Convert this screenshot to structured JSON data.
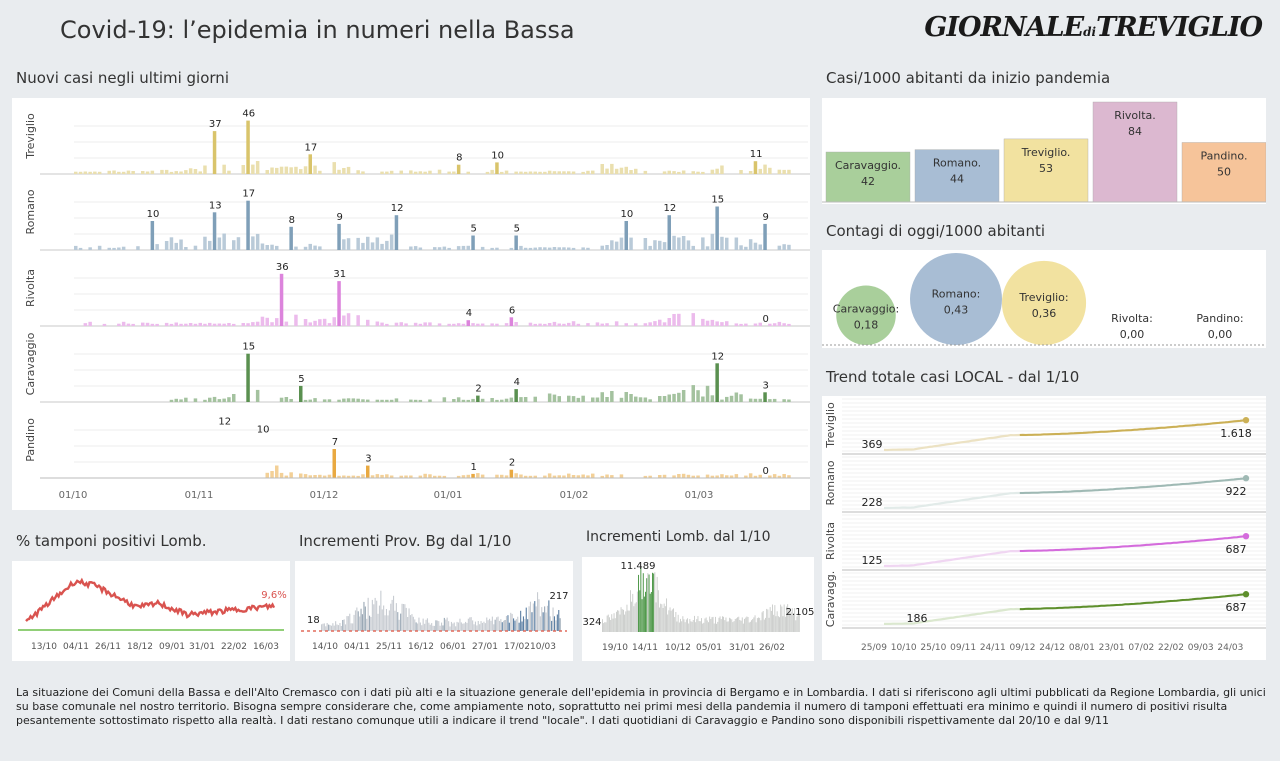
{
  "header": {
    "title": "Covid-19: l’epidemia  in numeri nella Bassa",
    "logo_main": "GIORNALE",
    "logo_small": "di",
    "logo_end": "TREVIGLIO"
  },
  "daily": {
    "title": "Nuovi casi negli ultimi   giorni",
    "x_ticks": [
      "01/10",
      "01/11",
      "01/12",
      "01/01",
      "01/02",
      "01/03"
    ],
    "colors": [
      "#d9c46b",
      "#7f9fb8",
      "#dc84dc",
      "#5a9050",
      "#e9a941"
    ],
    "series": [
      {
        "name": "Treviglio",
        "max": 50,
        "labels": [
          {
            "i": 29,
            "v": 37
          },
          {
            "i": 36,
            "v": 46
          },
          {
            "i": 49,
            "v": 17
          },
          {
            "i": 80,
            "v": 8
          },
          {
            "i": 88,
            "v": 10
          },
          {
            "i": 142,
            "v": 11
          }
        ]
      },
      {
        "name": "Romano",
        "max": 20,
        "labels": [
          {
            "i": 16,
            "v": 10
          },
          {
            "i": 29,
            "v": 13
          },
          {
            "i": 36,
            "v": 17
          },
          {
            "i": 45,
            "v": 8
          },
          {
            "i": 55,
            "v": 9
          },
          {
            "i": 67,
            "v": 12
          },
          {
            "i": 83,
            "v": 5
          },
          {
            "i": 92,
            "v": 5
          },
          {
            "i": 115,
            "v": 10
          },
          {
            "i": 124,
            "v": 12
          },
          {
            "i": 134,
            "v": 15
          },
          {
            "i": 144,
            "v": 9
          }
        ]
      },
      {
        "name": "Rivolta",
        "max": 40,
        "labels": [
          {
            "i": 43,
            "v": 36
          },
          {
            "i": 55,
            "v": 31
          },
          {
            "i": 82,
            "v": 4
          },
          {
            "i": 91,
            "v": 6
          },
          {
            "i": 144,
            "v": 0
          }
        ]
      },
      {
        "name": "Caravaggio",
        "max": 18,
        "labels": [
          {
            "i": 36,
            "v": 15
          },
          {
            "i": 47,
            "v": 5
          },
          {
            "i": 84,
            "v": 2
          },
          {
            "i": 92,
            "v": 4
          },
          {
            "i": 134,
            "v": 12
          },
          {
            "i": 144,
            "v": 3
          }
        ]
      },
      {
        "name": "Pandino",
        "max": 14,
        "labels": [
          {
            "i": 31,
            "v": 12
          },
          {
            "i": 39,
            "v": 10
          },
          {
            "i": 54,
            "v": 7
          },
          {
            "i": 61,
            "v": 3
          },
          {
            "i": 83,
            "v": 1
          },
          {
            "i": 91,
            "v": 2
          },
          {
            "i": 144,
            "v": 0
          }
        ]
      }
    ]
  },
  "per1000": {
    "title": "Casi/1000 abitanti da inizio pandemia",
    "bars": [
      {
        "name": "Caravaggio.",
        "value": 42,
        "color": "#a9cf9b"
      },
      {
        "name": "Romano.",
        "value": 44,
        "color": "#a8bdd4"
      },
      {
        "name": "Treviglio.",
        "value": 53,
        "color": "#f2e2a0"
      },
      {
        "name": "Rivolta.",
        "value": 84,
        "color": "#dcb8d0"
      },
      {
        "name": "Pandino.",
        "value": 50,
        "color": "#f6c49a"
      }
    ]
  },
  "today": {
    "title": "Contagi di oggi/1000 abitanti",
    "items": [
      {
        "name": "Caravaggio:",
        "value": "0,18",
        "num": 0.18,
        "color": "#a9cf9b"
      },
      {
        "name": "Romano:",
        "value": "0,43",
        "num": 0.43,
        "color": "#a8bdd4"
      },
      {
        "name": "Treviglio:",
        "value": "0,36",
        "num": 0.36,
        "color": "#f2e2a0"
      },
      {
        "name": "Rivolta:",
        "value": "0,00",
        "num": 0,
        "color": "#dcb8d0"
      },
      {
        "name": "Pandino:",
        "value": "0,00",
        "num": 0,
        "color": "#f6c49a"
      }
    ]
  },
  "trend": {
    "title": "Trend totale casi  LOCAL - dal 1/10",
    "x_ticks": [
      "25/09",
      "10/10",
      "25/10",
      "09/11",
      "24/11",
      "09/12",
      "24/12",
      "08/01",
      "23/01",
      "07/02",
      "22/02",
      "09/03",
      "24/03"
    ],
    "series": [
      {
        "name": "Treviglio",
        "start": 369,
        "end": 1618,
        "start_label": "369",
        "end_label": "1.618",
        "color": "#cbb056",
        "faint": "#ece2c3"
      },
      {
        "name": "Romano",
        "start": 228,
        "end": 922,
        "start_label": "228",
        "end_label": "922",
        "color": "#9fb9b4",
        "faint": "#e2ebe9"
      },
      {
        "name": "Rivolta",
        "start": 125,
        "end": 687,
        "start_label": "125",
        "end_label": "687",
        "color": "#d46bdc",
        "faint": "#f0d6f2"
      },
      {
        "name": "Caravagg.",
        "start": 186,
        "end": 687,
        "start_label": "186",
        "end_label": "687",
        "color": "#5e8f2c",
        "faint": "#dbe8cf"
      }
    ]
  },
  "positivi": {
    "title": "% tamponi positivi Lomb.",
    "x_ticks": [
      "13/10",
      "04/11",
      "26/11",
      "18/12",
      "09/01",
      "31/01",
      "22/02",
      "16/03"
    ],
    "last_label": "9,6%",
    "color": "#d9534f"
  },
  "prov_bg": {
    "title": "Incrementi Prov. Bg dal 1/10",
    "x_ticks": [
      "14/10",
      "04/11",
      "25/11",
      "16/12",
      "06/01",
      "27/01",
      "17/02",
      "10/03"
    ],
    "first_label": "18",
    "last_label": "217"
  },
  "lomb": {
    "title": "Incrementi Lomb. dal 1/10",
    "x_ticks": [
      "19/10",
      "14/11",
      "10/12",
      "05/01",
      "31/01",
      "26/02"
    ],
    "first_label": "324",
    "peak_label": "11.489",
    "last_label": "2.105"
  },
  "footer": {
    "text": "La situazione dei Comuni della Bassa e dell'Alto Cremasco con i dati più alti e la situazione generale dell'epidemia in provincia di Bergamo e in Lombardia.  I dati si riferiscono agli ultimi pubblicati da Regione Lombardia, gli unici su base comunale nel  nostro territorio.  Bisogna sempre considerare che, come ampiamente noto, soprattutto nei primi mesi della pandemia il numero di tamponi effettuati era minimo e quindi il numero di positivi risulta pesantemente sottostimato rispetto alla realtà. I dati restano comunque utili a indicare il trend \"locale\".  I dati quotidiani di Caravaggio e Pandino sono disponibili rispettivamente dal 20/10 e dal 9/11"
  }
}
